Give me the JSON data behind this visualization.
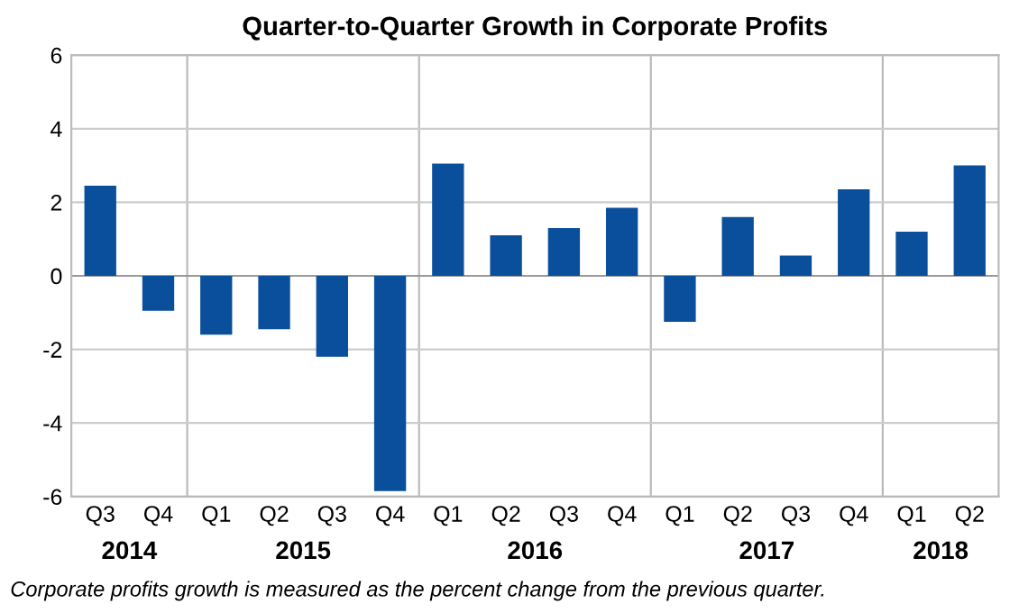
{
  "chart_data": {
    "type": "bar",
    "title": "Quarter-to-Quarter Growth in Corporate Profits",
    "categories": [
      "Q3",
      "Q4",
      "Q1",
      "Q2",
      "Q3",
      "Q4",
      "Q1",
      "Q2",
      "Q3",
      "Q4",
      "Q1",
      "Q2",
      "Q3",
      "Q4",
      "Q1",
      "Q2"
    ],
    "values": [
      2.45,
      -0.95,
      -1.6,
      -1.45,
      -2.2,
      -5.85,
      3.05,
      1.1,
      1.3,
      1.85,
      -1.25,
      1.6,
      0.55,
      2.35,
      1.2,
      3.0
    ],
    "color": "#0a4f9b",
    "ylim": [
      -6,
      6
    ],
    "yticks": [
      -6,
      -4,
      -2,
      0,
      2,
      4,
      6
    ],
    "grid": "y",
    "annotations": [
      "2014",
      "2015",
      "2016",
      "2017",
      "2018",
      "Corporate profits growth is measured as the percent change from the previous quarter."
    ]
  }
}
